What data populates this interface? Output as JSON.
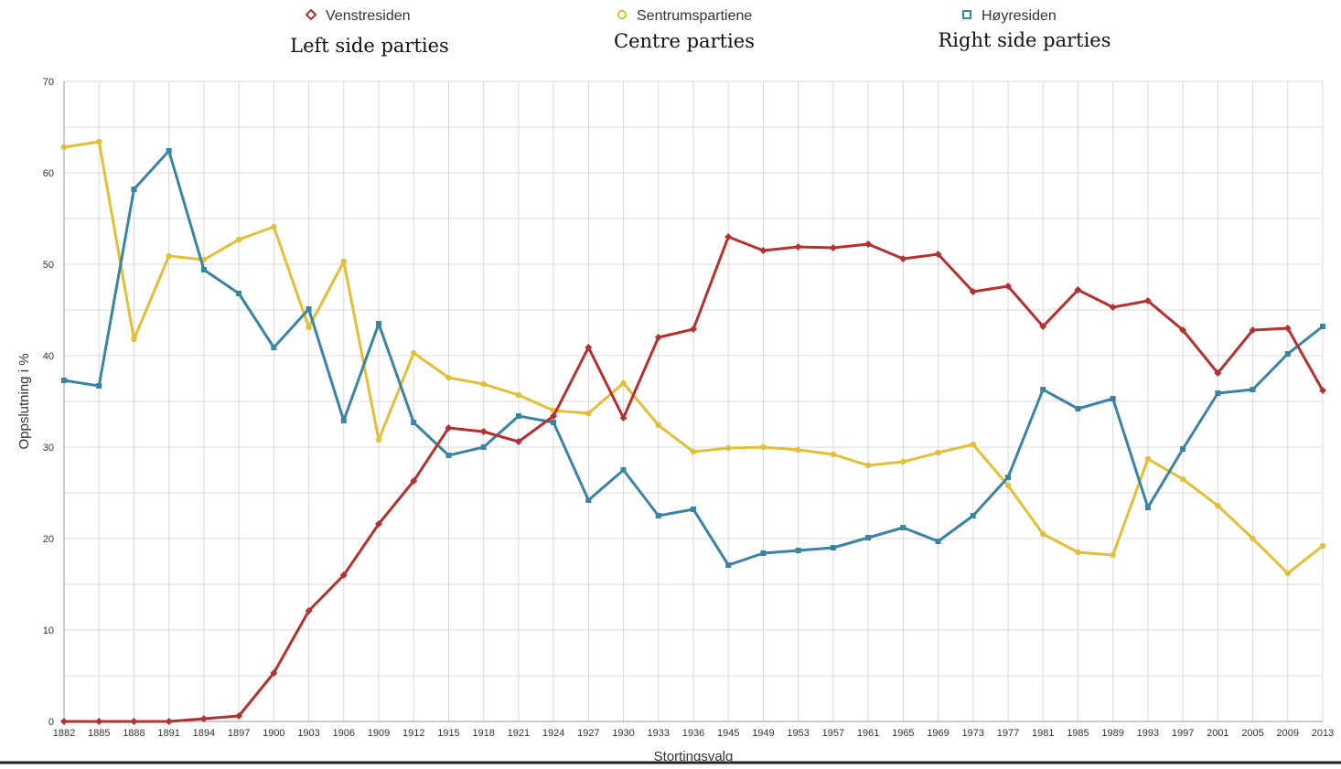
{
  "colors": {
    "venstre": "#b5302f",
    "sentrum": "#e2bf36",
    "hoyre": "#3a84a3"
  },
  "chart_data": {
    "type": "line",
    "xlabel": "Stortingsvalg",
    "ylabel": "Oppslutning i %",
    "ylim": [
      0,
      70
    ],
    "yticks": [
      0,
      10,
      20,
      30,
      40,
      50,
      60,
      70
    ],
    "grid": true,
    "legend_position": "top",
    "categories": [
      "1882",
      "1885",
      "1888",
      "1891",
      "1894",
      "1897",
      "1900",
      "1903",
      "1906",
      "1909",
      "1912",
      "1915",
      "1918",
      "1921",
      "1924",
      "1927",
      "1930",
      "1933",
      "1936",
      "1945",
      "1949",
      "1953",
      "1957",
      "1961",
      "1965",
      "1969",
      "1973",
      "1977",
      "1981",
      "1985",
      "1989",
      "1993",
      "1997",
      "2001",
      "2005",
      "2009",
      "2013"
    ],
    "series": [
      {
        "key": "venstre",
        "name": "Venstresiden",
        "translation": "Left side parties",
        "marker": "diamond",
        "values": [
          0,
          0,
          0,
          0,
          0.3,
          0.6,
          5.3,
          12.1,
          16,
          21.6,
          26.3,
          32.1,
          31.7,
          30.6,
          33.4,
          40.9,
          33.2,
          42,
          42.9,
          53,
          51.5,
          51.9,
          51.8,
          52.2,
          50.6,
          51.1,
          47,
          47.6,
          43.2,
          47.2,
          45.3,
          46,
          42.8,
          38.1,
          42.8,
          43,
          36.2
        ]
      },
      {
        "key": "sentrum",
        "name": "Sentrumspartiene",
        "translation": "Centre parties",
        "marker": "circle",
        "values": [
          62.8,
          63.4,
          41.8,
          50.9,
          50.5,
          52.7,
          54.1,
          43.1,
          50.3,
          30.8,
          40.3,
          37.6,
          36.9,
          35.7,
          34,
          33.7,
          37,
          32.4,
          29.5,
          29.9,
          30,
          29.7,
          29.2,
          28,
          28.4,
          29.4,
          30.3,
          25.8,
          20.5,
          18.5,
          18.2,
          28.7,
          26.5,
          23.6,
          20,
          16.2,
          19.2
        ]
      },
      {
        "key": "hoyre",
        "name": "Høyresiden",
        "translation": "Right side parties",
        "marker": "square",
        "values": [
          37.3,
          36.7,
          58.2,
          62.4,
          49.4,
          46.8,
          40.9,
          45.1,
          32.9,
          43.5,
          32.7,
          29.1,
          30,
          33.4,
          32.7,
          24.2,
          27.5,
          22.5,
          23.2,
          17.1,
          18.4,
          18.7,
          19,
          20.1,
          21.2,
          19.7,
          22.5,
          26.7,
          36.3,
          34.2,
          35.3,
          23.4,
          29.8,
          35.9,
          36.3,
          40.2,
          43.2
        ]
      }
    ]
  }
}
